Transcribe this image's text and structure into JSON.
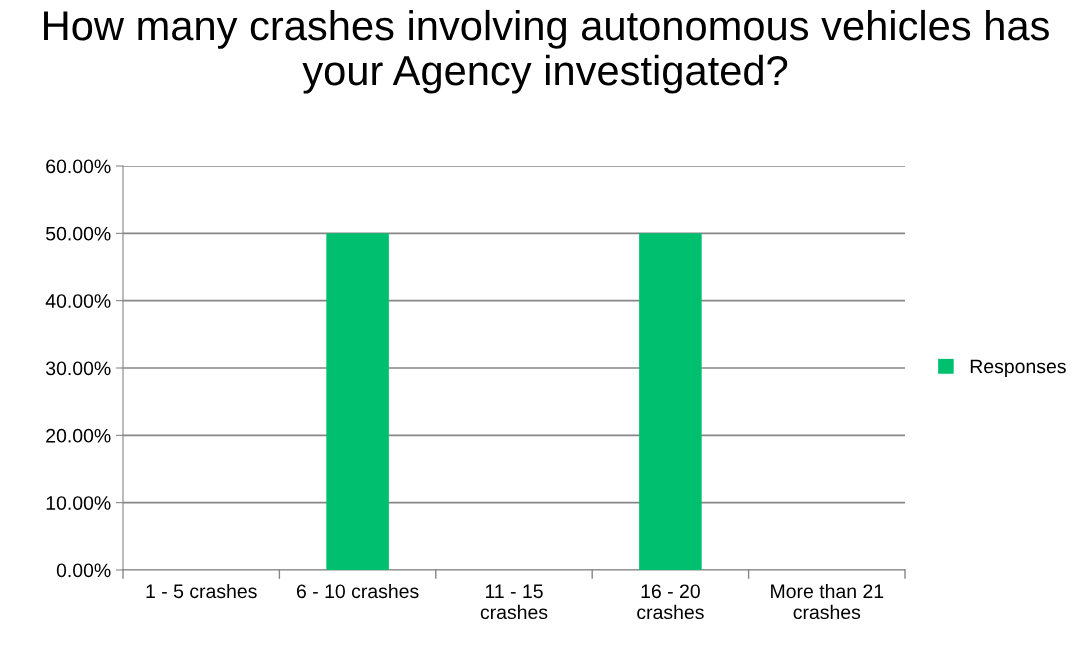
{
  "chart_data": {
    "type": "bar",
    "title": "How many crashes involving autonomous vehicles has your Agency investigated?",
    "categories": [
      "1 - 5 crashes",
      "6 - 10 crashes",
      "11 - 15\ncrashes",
      "16 - 20\ncrashes",
      "More than 21\ncrashes"
    ],
    "series": [
      {
        "name": "Responses",
        "color": "#00c070",
        "values": [
          0,
          50,
          0,
          50,
          0
        ]
      }
    ],
    "ylim": [
      0,
      60
    ],
    "yticks": [
      {
        "value": 0,
        "label": "0.00%"
      },
      {
        "value": 10,
        "label": "10.00%"
      },
      {
        "value": 20,
        "label": "20.00%"
      },
      {
        "value": 30,
        "label": "30.00%"
      },
      {
        "value": 40,
        "label": "40.00%"
      },
      {
        "value": 50,
        "label": "50.00%"
      },
      {
        "value": 60,
        "label": "60.00%"
      }
    ],
    "grid": "y",
    "legend": "right"
  }
}
